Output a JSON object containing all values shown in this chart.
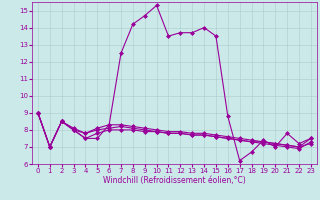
{
  "xlabel": "Windchill (Refroidissement éolien,°C)",
  "x_hours": [
    0,
    1,
    2,
    3,
    4,
    5,
    6,
    7,
    8,
    9,
    10,
    11,
    12,
    13,
    14,
    15,
    16,
    17,
    18,
    19,
    20,
    21,
    22,
    23
  ],
  "series": [
    [
      9.0,
      7.0,
      8.5,
      8.0,
      7.5,
      7.5,
      8.3,
      12.5,
      14.2,
      14.7,
      15.3,
      13.5,
      13.7,
      13.7,
      14.0,
      13.5,
      8.8,
      6.2,
      6.7,
      7.4,
      7.0,
      7.8,
      7.2,
      7.5
    ],
    [
      9.0,
      7.0,
      8.5,
      8.1,
      7.8,
      8.1,
      8.3,
      8.3,
      8.2,
      8.1,
      8.0,
      7.9,
      7.9,
      7.8,
      7.8,
      7.7,
      7.6,
      7.5,
      7.4,
      7.3,
      7.2,
      7.1,
      7.0,
      7.5
    ],
    [
      9.0,
      7.0,
      8.5,
      8.0,
      7.8,
      8.0,
      8.1,
      8.2,
      8.1,
      8.0,
      7.9,
      7.8,
      7.8,
      7.7,
      7.7,
      7.6,
      7.5,
      7.4,
      7.3,
      7.2,
      7.1,
      7.0,
      6.9,
      7.3
    ],
    [
      9.0,
      7.0,
      8.5,
      8.0,
      7.5,
      7.8,
      8.0,
      8.0,
      8.0,
      7.9,
      7.9,
      7.8,
      7.8,
      7.7,
      7.7,
      7.6,
      7.5,
      7.4,
      7.3,
      7.3,
      7.2,
      7.1,
      7.0,
      7.2
    ]
  ],
  "line_color": "#990099",
  "marker": "D",
  "marker_size": 2,
  "bg_color": "#cce9e9",
  "grid_color": "#aacccc",
  "ylim": [
    6,
    15.5
  ],
  "yticks": [
    6,
    7,
    8,
    9,
    10,
    11,
    12,
    13,
    14,
    15
  ],
  "xticks": [
    0,
    1,
    2,
    3,
    4,
    5,
    6,
    7,
    8,
    9,
    10,
    11,
    12,
    13,
    14,
    15,
    16,
    17,
    18,
    19,
    20,
    21,
    22,
    23
  ],
  "tick_fontsize": 5,
  "label_fontsize": 5.5,
  "linewidth": 0.8
}
